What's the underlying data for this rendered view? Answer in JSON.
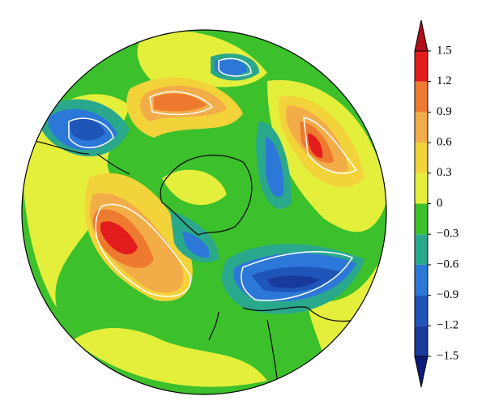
{
  "chart_data": {
    "type": "colorbar",
    "ticks": [
      {
        "value": -1.5,
        "label": "−1.5"
      },
      {
        "value": -1.2,
        "label": "−1.2"
      },
      {
        "value": -0.9,
        "label": "−0.9"
      },
      {
        "value": -0.6,
        "label": "−0.6"
      },
      {
        "value": -0.3,
        "label": "−0.3"
      },
      0,
      0.3,
      0.6,
      0.9,
      1.2,
      1.5
    ],
    "lim": [
      -1.5,
      1.5
    ],
    "extend": "both",
    "colors": [
      "#0b1a78",
      "#173a9c",
      "#1f55b8",
      "#2c78d8",
      "#2aa88c",
      "#3cc02c",
      "#e4ef3c",
      "#f3d33a",
      "#f3ad48",
      "#ee7a30",
      "#e21c1c",
      "#b0101a"
    ]
  }
}
